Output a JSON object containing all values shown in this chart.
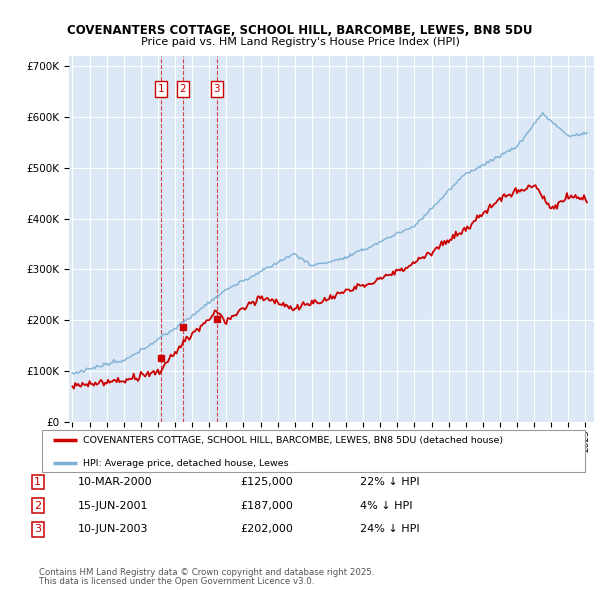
{
  "title1": "COVENANTERS COTTAGE, SCHOOL HILL, BARCOMBE, LEWES, BN8 5DU",
  "title2": "Price paid vs. HM Land Registry's House Price Index (HPI)",
  "bg_color": "#dce8f5",
  "grid_color": "#ffffff",
  "sale_dates_num": [
    2000.19,
    2001.46,
    2003.44
  ],
  "sale_prices": [
    125000,
    187000,
    202000
  ],
  "sale_labels": [
    "1",
    "2",
    "3"
  ],
  "legend_line1": "COVENANTERS COTTAGE, SCHOOL HILL, BARCOMBE, LEWES, BN8 5DU (detached house)",
  "legend_line2": "HPI: Average price, detached house, Lewes",
  "table_data": [
    [
      "1",
      "10-MAR-2000",
      "£125,000",
      "22% ↓ HPI"
    ],
    [
      "2",
      "15-JUN-2001",
      "£187,000",
      "4% ↓ HPI"
    ],
    [
      "3",
      "10-JUN-2003",
      "£202,000",
      "24% ↓ HPI"
    ]
  ],
  "footnote1": "Contains HM Land Registry data © Crown copyright and database right 2025.",
  "footnote2": "This data is licensed under the Open Government Licence v3.0.",
  "red_color": "#cc0000",
  "blue_color": "#7bafd4",
  "ylim_max": 720000,
  "xmin": 1994.8,
  "xmax": 2025.5
}
